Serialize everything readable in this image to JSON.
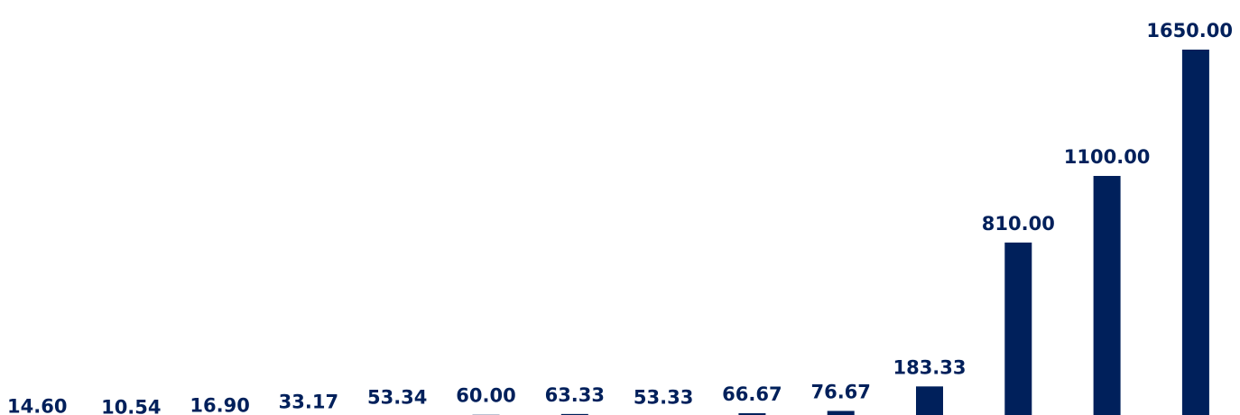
{
  "chart_data": {
    "type": "bar",
    "title": "",
    "xlabel": "",
    "ylabel": "",
    "grid": false,
    "legend": "none",
    "bar_color": "#00205b",
    "label_color": "#00205b",
    "values": [
      14.6,
      10.54,
      16.9,
      33.17,
      53.34,
      60.0,
      63.33,
      53.33,
      66.67,
      76.67,
      183.33,
      810.0,
      1100.0,
      1650.0
    ],
    "labels": [
      "14.60",
      "10.54",
      "16.90",
      "33.17",
      "53.34",
      "60.00",
      "63.33",
      "53.33",
      "66.67",
      "76.67",
      "183.33",
      "810.00",
      "1100.00",
      "1650.00"
    ]
  }
}
